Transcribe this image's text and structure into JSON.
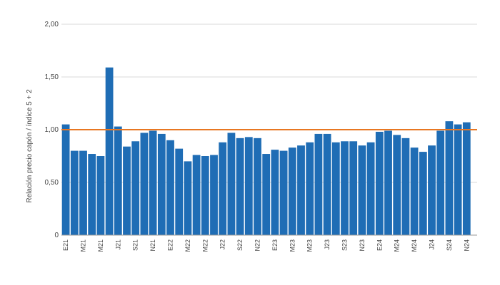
{
  "chart_data": {
    "type": "bar",
    "y_label": "Relación precio capón / índice 5 + 2",
    "categories": [
      "E21",
      null,
      "M21",
      null,
      "M21",
      null,
      "J21",
      null,
      "S21",
      null,
      "N21",
      null,
      "E22",
      null,
      "M22",
      null,
      "M22",
      null,
      "J22",
      null,
      "S22",
      null,
      "N22",
      null,
      "E23",
      null,
      "M23",
      null,
      "M23",
      null,
      "J23",
      null,
      "S23",
      null,
      "N23",
      null,
      "E24",
      null,
      "M24",
      null,
      "M24",
      null,
      "J24",
      null,
      "S24",
      null,
      "N24"
    ],
    "values": [
      1.05,
      0.8,
      0.8,
      0.77,
      0.75,
      1.59,
      1.03,
      0.84,
      0.89,
      0.97,
      0.99,
      0.96,
      0.9,
      0.82,
      0.7,
      0.76,
      0.75,
      0.76,
      0.88,
      0.97,
      0.92,
      0.93,
      0.92,
      0.77,
      0.81,
      0.8,
      0.83,
      0.85,
      0.88,
      0.96,
      0.96,
      0.88,
      0.89,
      0.89,
      0.85,
      0.88,
      0.98,
      0.99,
      0.95,
      0.92,
      0.83,
      0.79,
      0.85,
      0.99,
      1.08,
      1.05,
      1.07
    ],
    "color": "#1f6db5",
    "reference_line": {
      "value": 1.0,
      "color": "#e87722"
    },
    "ylim": [
      0,
      2
    ],
    "yticks": [
      0,
      {
        "value": 0.5,
        "label": "0,50"
      },
      {
        "value": 1,
        "label": "1,00"
      },
      {
        "value": 1.5,
        "label": "1,50"
      },
      {
        "value": 2,
        "label": "2,00"
      }
    ],
    "grid": true
  }
}
